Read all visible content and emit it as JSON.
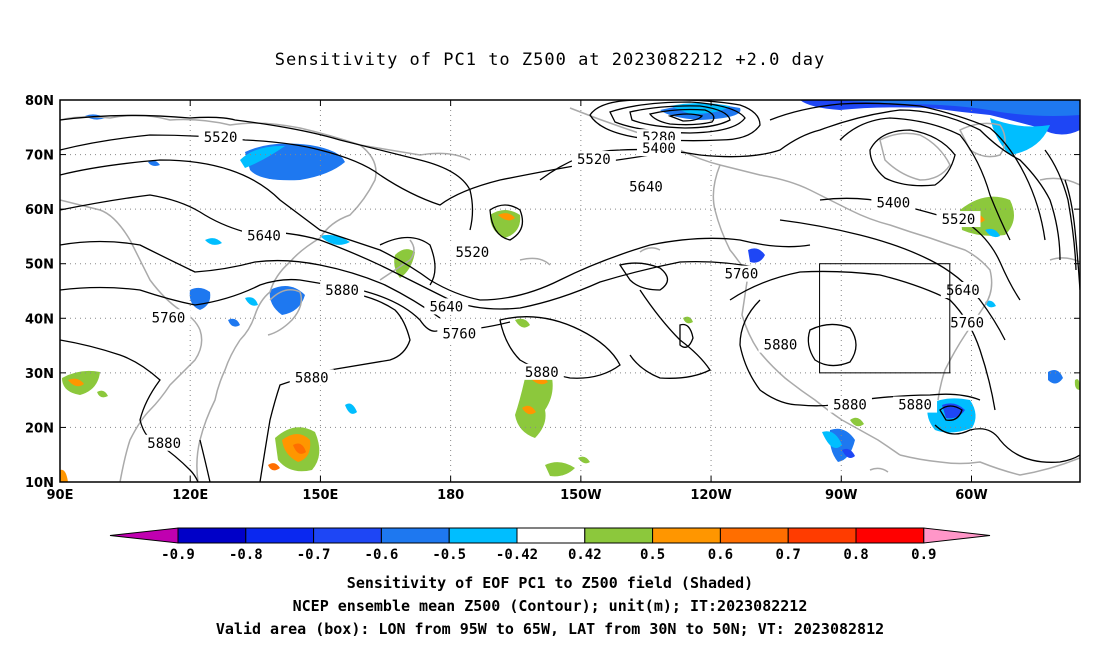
{
  "title": "Sensitivity of PC1 to Z500 at 2023082212 +2.0 day",
  "map": {
    "lon_labels": [
      "90E",
      "120E",
      "150E",
      "180",
      "150W",
      "120W",
      "90W",
      "60W"
    ],
    "lat_labels": [
      "80N",
      "70N",
      "60N",
      "50N",
      "40N",
      "30N",
      "20N",
      "10N"
    ],
    "contour_labels": [
      {
        "text": "5520",
        "lon": 127,
        "lat": 73
      },
      {
        "text": "5280",
        "lon": -132,
        "lat": 73
      },
      {
        "text": "5400",
        "lon": -132,
        "lat": 71
      },
      {
        "text": "5520",
        "lon": -147,
        "lat": 69
      },
      {
        "text": "5640",
        "lon": -135,
        "lat": 64
      },
      {
        "text": "5400",
        "lon": -78,
        "lat": 61
      },
      {
        "text": "5520",
        "lon": -63,
        "lat": 58
      },
      {
        "text": "5640",
        "lon": 137,
        "lat": 55
      },
      {
        "text": "5520",
        "lon": 185,
        "lat": 52
      },
      {
        "text": "5760",
        "lon": -113,
        "lat": 48
      },
      {
        "text": "5880",
        "lon": 155,
        "lat": 45
      },
      {
        "text": "5640",
        "lon": -62,
        "lat": 45
      },
      {
        "text": "5760",
        "lon": 115,
        "lat": 40
      },
      {
        "text": "5640",
        "lon": 179,
        "lat": 42
      },
      {
        "text": "5760",
        "lon": 182,
        "lat": 37
      },
      {
        "text": "5760",
        "lon": -61,
        "lat": 39
      },
      {
        "text": "5880",
        "lon": -104,
        "lat": 35
      },
      {
        "text": "5880",
        "lon": 201,
        "lat": 30
      },
      {
        "text": "5880",
        "lon": 148,
        "lat": 29
      },
      {
        "text": "5880",
        "lon": -88,
        "lat": 24
      },
      {
        "text": "5880",
        "lon": -73,
        "lat": 24
      },
      {
        "text": "5880",
        "lon": 114,
        "lat": 17
      }
    ],
    "valid_box": {
      "lon_min": -95,
      "lon_max": -65,
      "lat_min": 30,
      "lat_max": 50
    }
  },
  "colorbar": {
    "labels": [
      "-0.9",
      "-0.8",
      "-0.7",
      "-0.6",
      "-0.5",
      "-0.42",
      "0.42",
      "0.5",
      "0.6",
      "0.7",
      "0.8",
      "0.9"
    ],
    "colors": [
      "#c000b0",
      "#0000c8",
      "#0a28f0",
      "#1e46f5",
      "#1e78f0",
      "#00beff",
      "#ffffff",
      "#8cc83c",
      "#ff9600",
      "#ff6e00",
      "#ff3c00",
      "#ff0000",
      "#ff96c8"
    ]
  },
  "footer": {
    "line1": "Sensitivity of EOF PC1 to Z500 field (Shaded)",
    "line2": "NCEP ensemble mean Z500 (Contour); unit(m); IT:2023082212",
    "line3": "Valid area (box): LON from 95W to 65W, LAT from 30N to 50N; VT: 2023082812"
  }
}
